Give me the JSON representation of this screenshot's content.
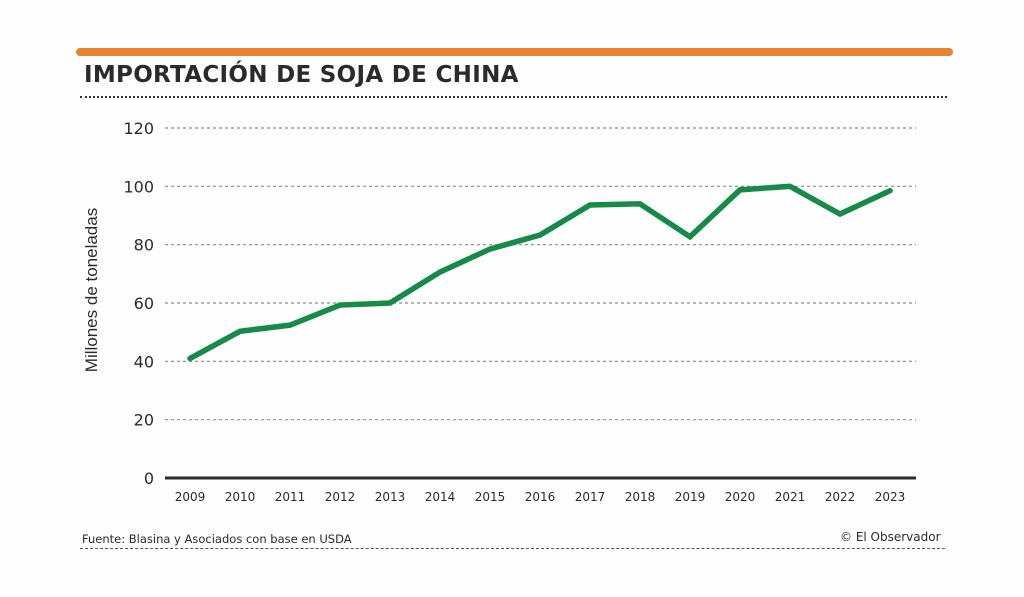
{
  "header": {
    "title": "IMPORTACIÓN DE SOJA DE CHINA",
    "accent_color": "#e8832e"
  },
  "footer": {
    "source": "Fuente: Blasina y Asociados con base en USDA",
    "copyright": "© El Observador"
  },
  "chart_data": {
    "type": "line",
    "title": "IMPORTACIÓN DE SOJA DE CHINA",
    "xlabel": "",
    "ylabel": "Millones de toneladas",
    "ylim": [
      0,
      120
    ],
    "yticks": [
      0,
      20,
      40,
      60,
      80,
      100,
      120
    ],
    "grid": true,
    "legend": "none",
    "categories": [
      "2009",
      "2010",
      "2011",
      "2012",
      "2013",
      "2014",
      "2015",
      "2016",
      "2017",
      "2018",
      "2019",
      "2020",
      "2021",
      "2022",
      "2023"
    ],
    "series": [
      {
        "name": "Importación de soja de China",
        "color": "#168a47",
        "values": [
          41,
          50.3,
          52.4,
          59.3,
          60,
          70.6,
          78.5,
          83.3,
          93.6,
          94,
          82.7,
          98.8,
          100,
          90.5,
          98.5
        ]
      }
    ]
  }
}
